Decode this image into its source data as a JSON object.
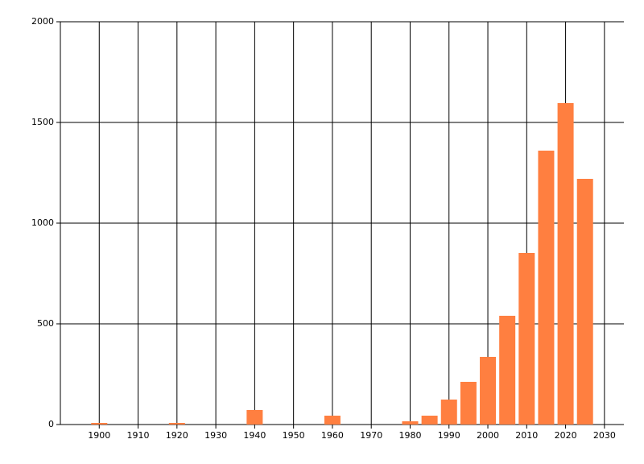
{
  "chart_data": {
    "type": "bar",
    "x": [
      1900,
      1920,
      1940,
      1960,
      1980,
      1985,
      1990,
      1995,
      2000,
      2005,
      2010,
      2015,
      2020,
      2025
    ],
    "values": [
      8,
      8,
      72,
      44,
      16,
      44,
      124,
      212,
      336,
      540,
      852,
      1360,
      1596,
      1220
    ],
    "color": "#ff7f40",
    "xlim": [
      1890,
      2035
    ],
    "xticks": [
      1900,
      1910,
      1920,
      1930,
      1940,
      1950,
      1960,
      1970,
      1980,
      1990,
      2000,
      2010,
      2020,
      2030
    ],
    "ylim": [
      0,
      2000
    ],
    "yticks": [
      0,
      500,
      1000,
      1500,
      2000
    ],
    "grid": true
  }
}
